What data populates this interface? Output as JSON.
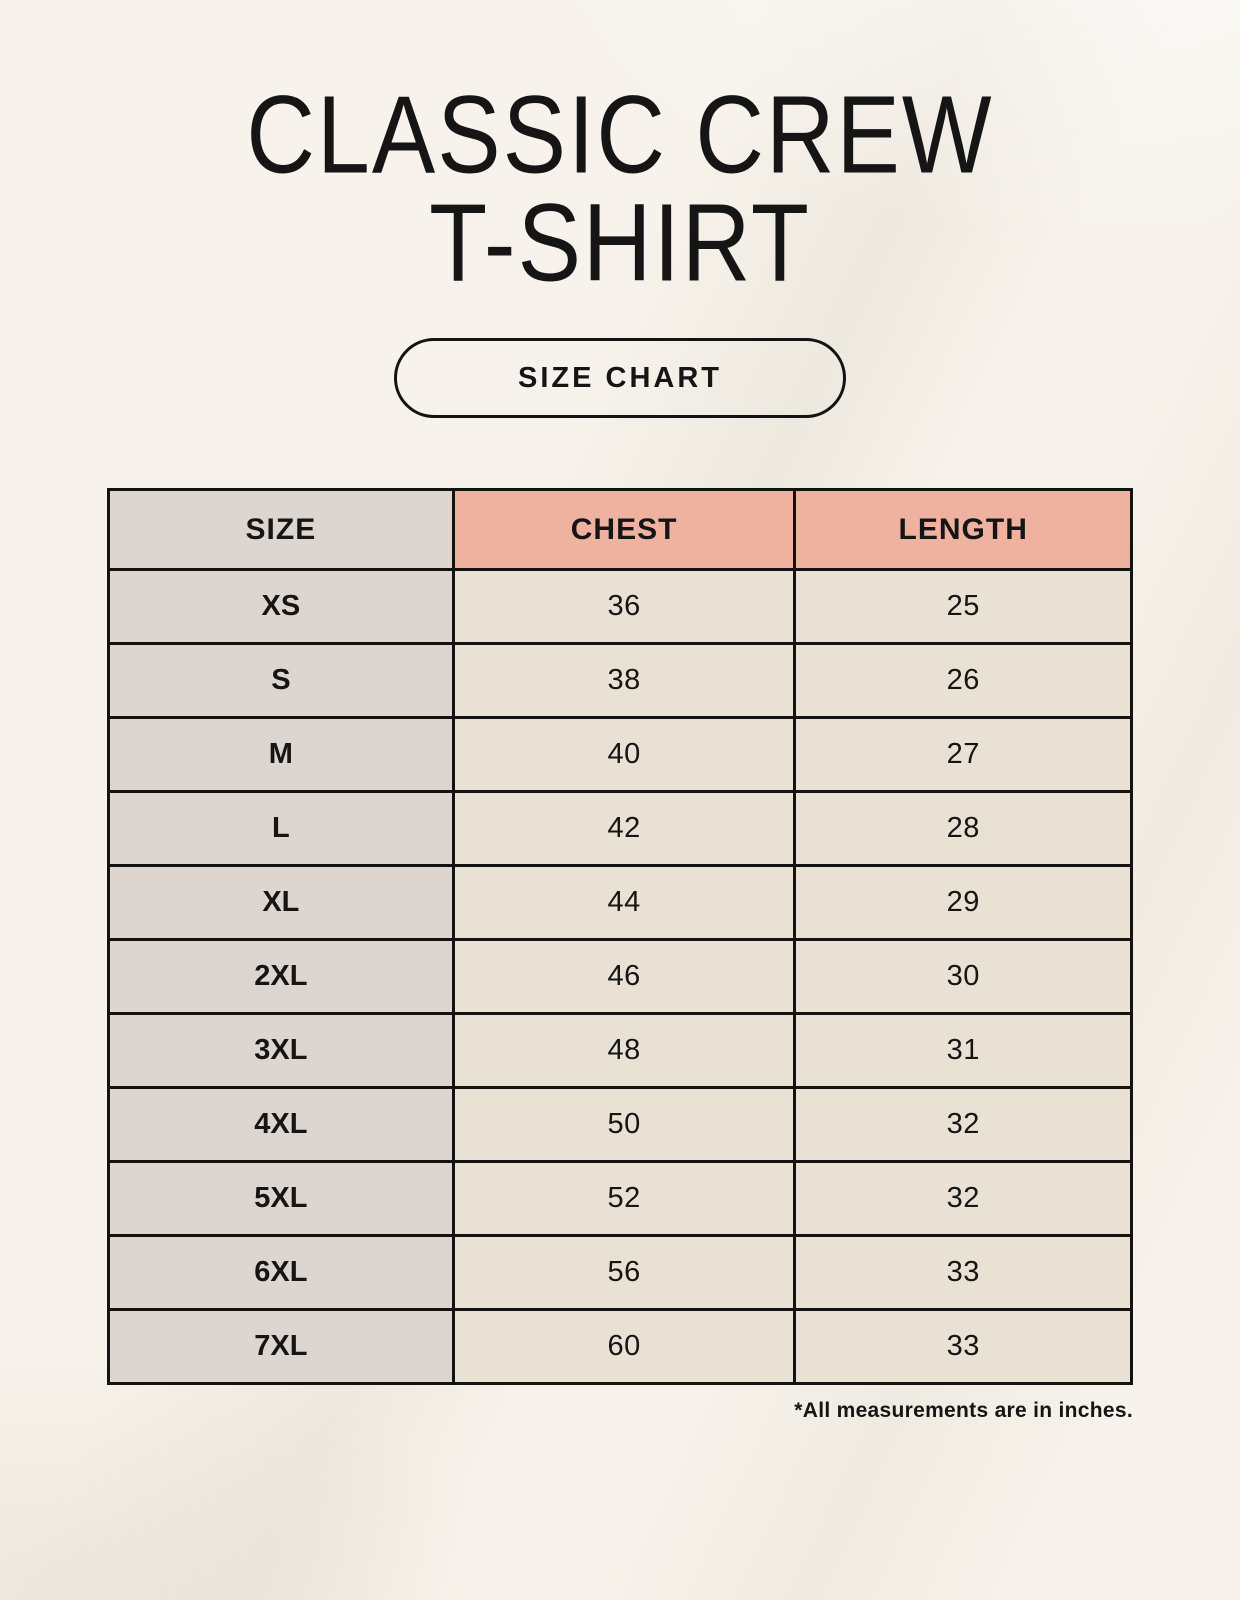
{
  "page": {
    "title_line1": "CLASSIC CREW",
    "title_line2": "T-SHIRT",
    "button_label": "SIZE CHART",
    "footnote": "*All measurements are in inches."
  },
  "colors": {
    "background": "#f7f3ec",
    "header_pink": "#efb2a1",
    "col_gray": "#ddd5cf",
    "cell_cream": "#e9e2d4",
    "border": "#131313",
    "text": "#151515"
  },
  "table": {
    "columns": [
      "SIZE",
      "CHEST",
      "LENGTH"
    ],
    "rows": [
      {
        "size": "XS",
        "chest": "36",
        "length": "25"
      },
      {
        "size": "S",
        "chest": "38",
        "length": "26"
      },
      {
        "size": "M",
        "chest": "40",
        "length": "27"
      },
      {
        "size": "L",
        "chest": "42",
        "length": "28"
      },
      {
        "size": "XL",
        "chest": "44",
        "length": "29"
      },
      {
        "size": "2XL",
        "chest": "46",
        "length": "30"
      },
      {
        "size": "3XL",
        "chest": "48",
        "length": "31"
      },
      {
        "size": "4XL",
        "chest": "50",
        "length": "32"
      },
      {
        "size": "5XL",
        "chest": "52",
        "length": "32"
      },
      {
        "size": "6XL",
        "chest": "56",
        "length": "33"
      },
      {
        "size": "7XL",
        "chest": "60",
        "length": "33"
      }
    ]
  }
}
